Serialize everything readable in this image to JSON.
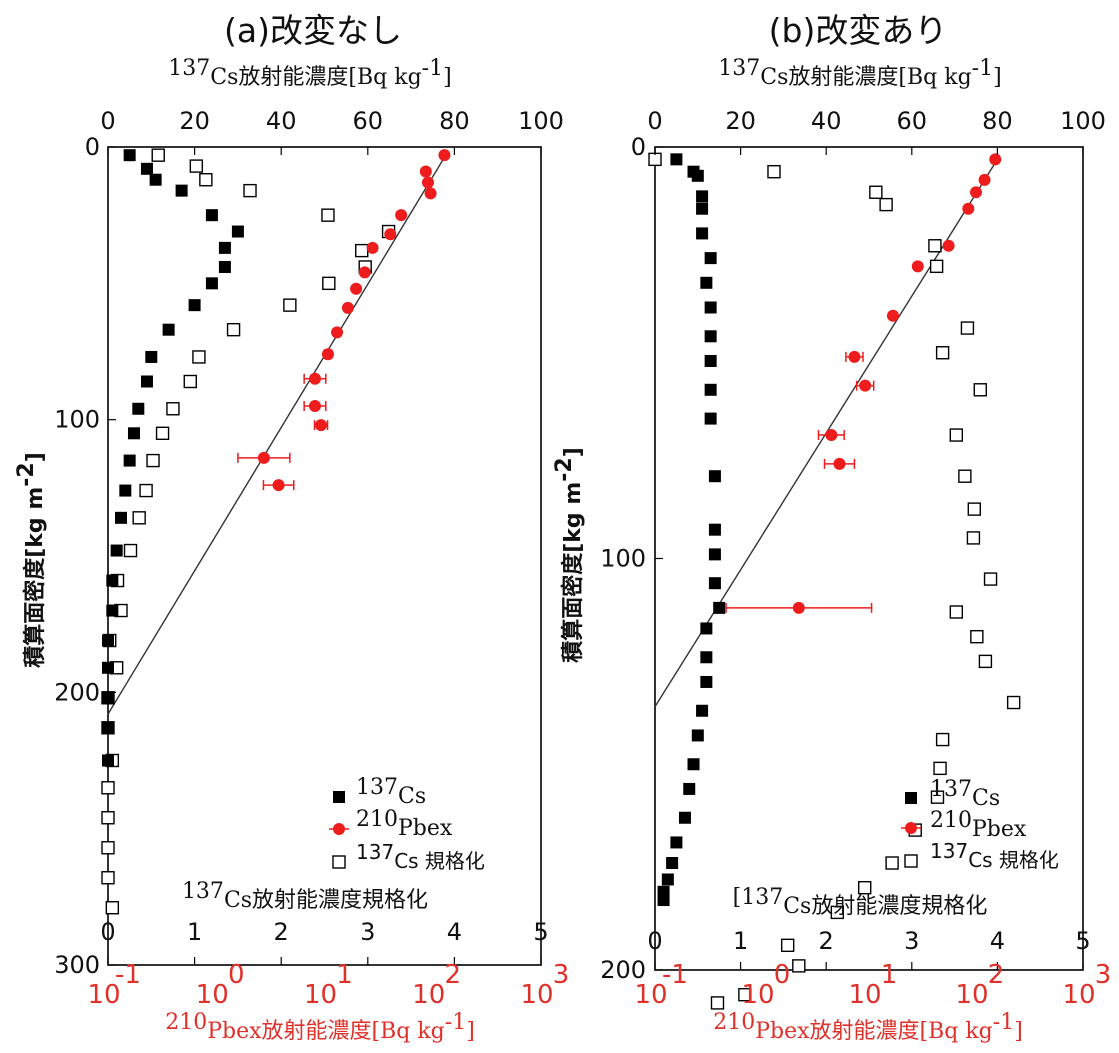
{
  "charts": [
    {
      "title": "(a)改変なし",
      "top_axis_label": "Cs放射能濃度[Bq kg",
      "top_axis_sup": "137",
      "top_axis_unit_sup": "-1",
      "top_axis_close": "]",
      "inner_axis_label": "Cs放射能濃度規格化",
      "inner_axis_sup": "137",
      "bottom_axis_label": "Pbex放射能濃度[Bq kg",
      "bottom_axis_sup": "210",
      "bottom_axis_unit_sup": "-1",
      "bottom_axis_close": "]",
      "ylabel": "積算面密度[kg m",
      "ylabel_sup": "-2",
      "ylabel_close": "]",
      "legend": [
        {
          "sup": "137",
          "label": "Cs"
        },
        {
          "sup": "210",
          "label": "Pbex"
        },
        {
          "sup": "137",
          "label": "Cs 規格化"
        }
      ]
    },
    {
      "title": "(b)改変あり",
      "top_axis_label": "Cs放射能濃度[Bq kg",
      "top_axis_sup": "137",
      "top_axis_unit_sup": "-1",
      "top_axis_close": "]",
      "inner_axis_label": "Cs放射能濃度規格化",
      "inner_axis_sup": "[137",
      "bottom_axis_label": "Pbex放射能濃度[Bq kg",
      "bottom_axis_sup": "210",
      "bottom_axis_unit_sup": "-1",
      "bottom_axis_close": "]",
      "ylabel": "積算面密度[kg m",
      "ylabel_sup": "-2",
      "ylabel_close": "]",
      "legend": [
        {
          "sup": "137",
          "label": "Cs"
        },
        {
          "sup": "210",
          "label": "Pbex"
        },
        {
          "sup": "137",
          "label": "Cs 規格化"
        }
      ]
    }
  ],
  "chart_data": [
    {
      "type": "scatter",
      "title": "(a)改変なし",
      "y_range": [
        0,
        300
      ],
      "y_ticks": [
        "0",
        "100",
        "200",
        "300"
      ],
      "top_range": [
        0,
        100
      ],
      "top_ticks": [
        "0",
        "20",
        "40",
        "60",
        "80",
        "100"
      ],
      "inner_range": [
        0,
        5
      ],
      "inner_ticks": [
        "0",
        "1",
        "2",
        "3",
        "4",
        "5"
      ],
      "log_ticks": [
        "10",
        "10",
        "10",
        "10",
        "10"
      ],
      "log_exps": [
        "-1",
        "0",
        "1",
        "2",
        "3"
      ],
      "colors": {
        "cs": "#000000",
        "pb": "#ee1c1c",
        "norm": "#000000",
        "fit": "#333333"
      },
      "cs137": [
        [
          5,
          3
        ],
        [
          9,
          8
        ],
        [
          11,
          12
        ],
        [
          17,
          16
        ],
        [
          24,
          25
        ],
        [
          30,
          31
        ],
        [
          27,
          37
        ],
        [
          27,
          44
        ],
        [
          24,
          50
        ],
        [
          20,
          58
        ],
        [
          14,
          67
        ],
        [
          10,
          77
        ],
        [
          9,
          86
        ],
        [
          7,
          96
        ],
        [
          6,
          105
        ],
        [
          5,
          115
        ],
        [
          4,
          126
        ],
        [
          3,
          136
        ],
        [
          2,
          148
        ],
        [
          1,
          159
        ],
        [
          1,
          170
        ],
        [
          0,
          181
        ],
        [
          0,
          191
        ],
        [
          0,
          202
        ],
        [
          0,
          213
        ],
        [
          0,
          225
        ]
      ],
      "pb210": [
        [
          77.7,
          3,
          0
        ],
        [
          73.4,
          9,
          0
        ],
        [
          73.9,
          13,
          0
        ],
        [
          74.5,
          17,
          0
        ],
        [
          67.7,
          25,
          0
        ],
        [
          65.2,
          32,
          0
        ],
        [
          61.1,
          37,
          0
        ],
        [
          59.3,
          46,
          0
        ],
        [
          57.3,
          52,
          0
        ],
        [
          55.4,
          59,
          0
        ],
        [
          52.9,
          68,
          0
        ],
        [
          50.8,
          76,
          0.8
        ],
        [
          47.8,
          85,
          2.5
        ],
        [
          47.8,
          95,
          2.5
        ],
        [
          49.2,
          102,
          1.5
        ],
        [
          36.0,
          114,
          6
        ],
        [
          39.4,
          124,
          3.5
        ]
      ],
      "cs137_norm": [
        [
          0.58,
          3
        ],
        [
          1.02,
          7
        ],
        [
          1.13,
          12
        ],
        [
          1.64,
          16
        ],
        [
          2.54,
          25
        ],
        [
          3.24,
          31
        ],
        [
          2.93,
          38
        ],
        [
          2.97,
          44
        ],
        [
          2.55,
          50
        ],
        [
          2.1,
          58
        ],
        [
          1.45,
          67
        ],
        [
          1.05,
          77
        ],
        [
          0.95,
          86
        ],
        [
          0.75,
          96
        ],
        [
          0.63,
          105
        ],
        [
          0.52,
          115
        ],
        [
          0.44,
          126
        ],
        [
          0.36,
          136
        ],
        [
          0.26,
          148
        ],
        [
          0.11,
          159
        ],
        [
          0.15,
          170
        ],
        [
          0.02,
          181
        ],
        [
          0.1,
          191
        ],
        [
          0.0,
          202
        ],
        [
          0.0,
          213
        ],
        [
          0.05,
          225
        ],
        [
          0.0,
          235
        ],
        [
          0.0,
          246
        ],
        [
          0.0,
          257
        ],
        [
          0.0,
          268
        ],
        [
          0.05,
          279
        ]
      ],
      "fit_line": [
        [
          78,
          3
        ],
        [
          0,
          208
        ]
      ]
    },
    {
      "type": "scatter",
      "title": "(b)改変あり",
      "y_range": [
        0,
        200
      ],
      "y_ticks": [
        "0",
        "100",
        "200"
      ],
      "top_range": [
        0,
        100
      ],
      "top_ticks": [
        "0",
        "20",
        "40",
        "60",
        "80",
        "100"
      ],
      "inner_range": [
        0,
        5
      ],
      "inner_ticks": [
        "0",
        "1",
        "2",
        "3",
        "4",
        "5"
      ],
      "log_ticks": [
        "10",
        "10",
        "10",
        "10",
        "10"
      ],
      "log_exps": [
        "-1",
        "0",
        "1",
        "2",
        "3"
      ],
      "colors": {
        "cs": "#000000",
        "pb": "#ee1c1c",
        "norm": "#000000",
        "fit": "#333333"
      },
      "cs137": [
        [
          5,
          3
        ],
        [
          9,
          6
        ],
        [
          10,
          7
        ],
        [
          11,
          12
        ],
        [
          11,
          15
        ],
        [
          11,
          21
        ],
        [
          13,
          27
        ],
        [
          12,
          33
        ],
        [
          13,
          39
        ],
        [
          13,
          46
        ],
        [
          13,
          52
        ],
        [
          13,
          59
        ],
        [
          13,
          66
        ],
        [
          14,
          80
        ],
        [
          14,
          93
        ],
        [
          14,
          99
        ],
        [
          14,
          106
        ],
        [
          15,
          112
        ],
        [
          12,
          117
        ],
        [
          12,
          124
        ],
        [
          12,
          130
        ],
        [
          11,
          137
        ],
        [
          10,
          143
        ],
        [
          9,
          150
        ],
        [
          8,
          156
        ],
        [
          7,
          163
        ],
        [
          5,
          169
        ],
        [
          4,
          174
        ],
        [
          3,
          178
        ],
        [
          2,
          181
        ],
        [
          2,
          183
        ]
      ],
      "pb210": [
        [
          79.5,
          3,
          0
        ],
        [
          77.0,
          8,
          0
        ],
        [
          75.0,
          11,
          0
        ],
        [
          73.2,
          15,
          0
        ],
        [
          68.6,
          24,
          0
        ],
        [
          61.4,
          29,
          0
        ],
        [
          55.6,
          41,
          0
        ],
        [
          46.6,
          51,
          2
        ],
        [
          49.1,
          58,
          2
        ],
        [
          41.2,
          70,
          3
        ],
        [
          43.1,
          77,
          3.5
        ],
        [
          33.6,
          112,
          17
        ]
      ],
      "cs137_norm": [
        [
          0.0,
          3
        ],
        [
          1.39,
          6
        ],
        [
          2.58,
          11
        ],
        [
          2.7,
          14
        ],
        [
          3.27,
          24
        ],
        [
          3.29,
          29
        ],
        [
          3.65,
          44
        ],
        [
          3.36,
          50
        ],
        [
          3.8,
          59
        ],
        [
          3.52,
          70
        ],
        [
          3.62,
          80
        ],
        [
          3.73,
          88
        ],
        [
          3.72,
          95
        ],
        [
          3.92,
          105
        ],
        [
          3.52,
          113
        ],
        [
          3.76,
          119
        ],
        [
          3.86,
          125
        ],
        [
          4.19,
          135
        ],
        [
          3.36,
          144
        ],
        [
          3.33,
          151
        ],
        [
          3.3,
          158
        ],
        [
          3.04,
          166
        ],
        [
          2.77,
          174
        ],
        [
          2.45,
          180
        ],
        [
          2.13,
          186
        ],
        [
          1.55,
          194
        ],
        [
          1.68,
          199
        ],
        [
          1.05,
          206
        ],
        [
          0.73,
          208
        ]
      ],
      "fit_line": [
        [
          80,
          3
        ],
        [
          0,
          136
        ]
      ]
    }
  ]
}
